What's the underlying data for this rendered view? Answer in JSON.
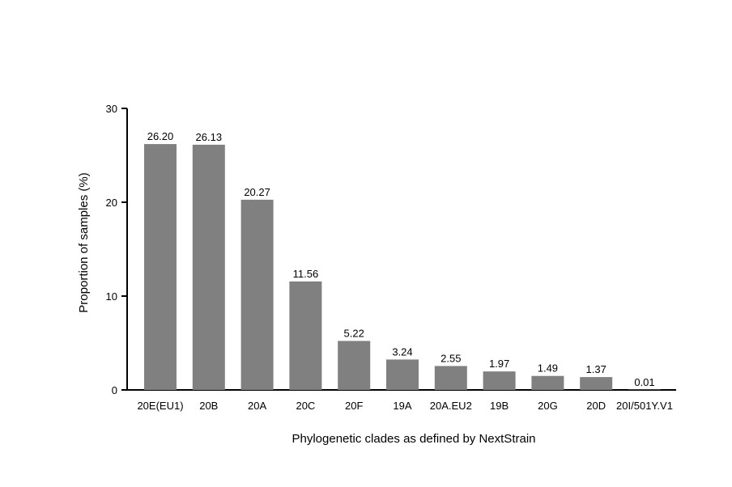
{
  "chart_data": {
    "type": "bar",
    "categories": [
      "20E(EU1)",
      "20B",
      "20A",
      "20C",
      "20F",
      "19A",
      "20A.EU2",
      "19B",
      "20G",
      "20D",
      "20I/501Y.V1"
    ],
    "values": [
      26.2,
      26.13,
      20.27,
      11.56,
      5.22,
      3.24,
      2.55,
      1.97,
      1.49,
      1.37,
      0.01
    ],
    "data_labels": [
      "26.20",
      "26.13",
      "20.27",
      "11.56",
      "5.22",
      "3.24",
      "2.55",
      "1.97",
      "1.49",
      "1.37",
      "0.01"
    ],
    "title": "",
    "xlabel": "Phylogenetic clades as defined by NextStrain",
    "ylabel": "Proportion of samples (%)",
    "ylim": [
      0,
      30
    ],
    "yticks": [
      0,
      10,
      20,
      30
    ],
    "ytick_labels": [
      "0",
      "10",
      "20",
      "30"
    ],
    "grid": false,
    "legend": "none",
    "bar_color": "#808080",
    "axis_color": "#000000"
  }
}
